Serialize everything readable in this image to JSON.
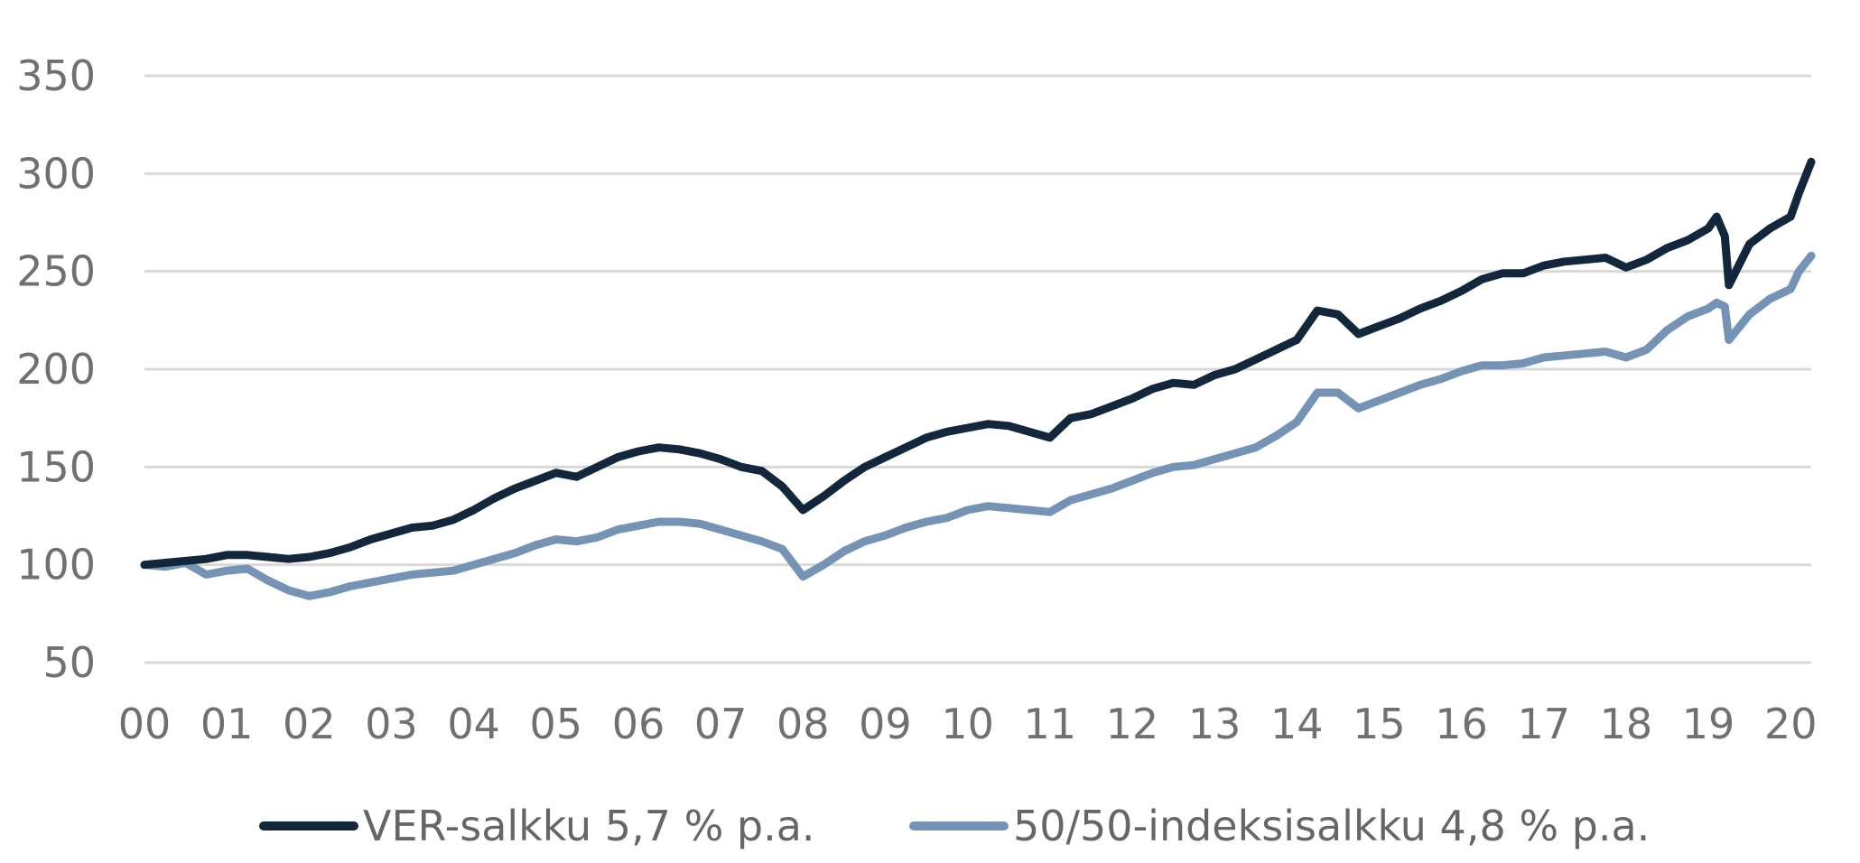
{
  "chart_data": {
    "type": "line",
    "title": "",
    "xlabel": "",
    "ylabel": "",
    "xlim": [
      2000,
      2020.25
    ],
    "ylim": [
      50,
      350
    ],
    "yticks": [
      350,
      300,
      250,
      200,
      150,
      100,
      50
    ],
    "xtick_labels": [
      "00",
      "01",
      "02",
      "03",
      "04",
      "05",
      "06",
      "07",
      "08",
      "09",
      "10",
      "11",
      "12",
      "13",
      "14",
      "15",
      "16",
      "17",
      "18",
      "19",
      "20"
    ],
    "xtick_values": [
      2000,
      2001,
      2002,
      2003,
      2004,
      2005,
      2006,
      2007,
      2008,
      2009,
      2010,
      2011,
      2012,
      2013,
      2014,
      2015,
      2016,
      2017,
      2018,
      2019,
      2020
    ],
    "grid": true,
    "legend_position": "bottom",
    "colors": {
      "ver": "#12273b",
      "index": "#7593b4",
      "grid": "#d9d9d9",
      "text": "#707070"
    },
    "series": [
      {
        "name": "VER-salkku 5,7 % p.a.",
        "color": "#12273b",
        "x": [
          2000,
          2000.25,
          2000.5,
          2000.75,
          2001,
          2001.25,
          2001.5,
          2001.75,
          2002,
          2002.25,
          2002.5,
          2002.75,
          2003,
          2003.25,
          2003.5,
          2003.75,
          2004,
          2004.25,
          2004.5,
          2004.75,
          2005,
          2005.25,
          2005.5,
          2005.75,
          2006,
          2006.25,
          2006.5,
          2006.75,
          2007,
          2007.25,
          2007.5,
          2007.75,
          2008,
          2008.25,
          2008.5,
          2008.75,
          2009,
          2009.25,
          2009.5,
          2009.75,
          2010,
          2010.25,
          2010.5,
          2010.75,
          2011,
          2011.25,
          2011.5,
          2011.75,
          2012,
          2012.25,
          2012.5,
          2012.75,
          2013,
          2013.25,
          2013.5,
          2013.75,
          2014,
          2014.25,
          2014.5,
          2014.75,
          2015,
          2015.25,
          2015.5,
          2015.75,
          2016,
          2016.25,
          2016.5,
          2016.75,
          2017,
          2017.25,
          2017.5,
          2017.75,
          2018,
          2018.25,
          2018.5,
          2018.75,
          2019,
          2019.1,
          2019.2,
          2019.25,
          2019.5,
          2019.75,
          2020,
          2020.1,
          2020.25
        ],
        "values": [
          100,
          101,
          102,
          103,
          105,
          105,
          104,
          103,
          104,
          106,
          109,
          113,
          116,
          119,
          120,
          123,
          128,
          134,
          139,
          143,
          147,
          145,
          150,
          155,
          158,
          160,
          159,
          157,
          154,
          150,
          148,
          140,
          128,
          135,
          143,
          150,
          155,
          160,
          165,
          168,
          170,
          172,
          171,
          168,
          165,
          175,
          177,
          181,
          185,
          190,
          193,
          192,
          197,
          200,
          205,
          210,
          215,
          230,
          228,
          218,
          222,
          226,
          231,
          235,
          240,
          246,
          249,
          249,
          253,
          255,
          256,
          257,
          252,
          256,
          262,
          266,
          272,
          278,
          268,
          243,
          264,
          272,
          278,
          290,
          306
        ]
      },
      {
        "name": "50/50-indeksisalkku 4,8 % p.a.",
        "color": "#7593b4",
        "x": [
          2000,
          2000.25,
          2000.5,
          2000.75,
          2001,
          2001.25,
          2001.5,
          2001.75,
          2002,
          2002.25,
          2002.5,
          2002.75,
          2003,
          2003.25,
          2003.5,
          2003.75,
          2004,
          2004.25,
          2004.5,
          2004.75,
          2005,
          2005.25,
          2005.5,
          2005.75,
          2006,
          2006.25,
          2006.5,
          2006.75,
          2007,
          2007.25,
          2007.5,
          2007.75,
          2008,
          2008.25,
          2008.5,
          2008.75,
          2009,
          2009.25,
          2009.5,
          2009.75,
          2010,
          2010.25,
          2010.5,
          2010.75,
          2011,
          2011.25,
          2011.5,
          2011.75,
          2012,
          2012.25,
          2012.5,
          2012.75,
          2013,
          2013.25,
          2013.5,
          2013.75,
          2014,
          2014.25,
          2014.5,
          2014.75,
          2015,
          2015.25,
          2015.5,
          2015.75,
          2016,
          2016.25,
          2016.5,
          2016.75,
          2017,
          2017.25,
          2017.5,
          2017.75,
          2018,
          2018.25,
          2018.5,
          2018.75,
          2019,
          2019.1,
          2019.2,
          2019.25,
          2019.5,
          2019.75,
          2020,
          2020.1,
          2020.25
        ],
        "values": [
          100,
          99,
          101,
          95,
          97,
          98,
          92,
          87,
          84,
          86,
          89,
          91,
          93,
          95,
          96,
          97,
          100,
          103,
          106,
          110,
          113,
          112,
          114,
          118,
          120,
          122,
          122,
          121,
          118,
          115,
          112,
          108,
          94,
          100,
          107,
          112,
          115,
          119,
          122,
          124,
          128,
          130,
          129,
          128,
          127,
          133,
          136,
          139,
          143,
          147,
          150,
          151,
          154,
          157,
          160,
          166,
          173,
          188,
          188,
          180,
          184,
          188,
          192,
          195,
          199,
          202,
          202,
          203,
          206,
          207,
          208,
          209,
          206,
          210,
          220,
          227,
          231,
          234,
          232,
          215,
          228,
          236,
          241,
          250,
          258
        ]
      }
    ]
  }
}
